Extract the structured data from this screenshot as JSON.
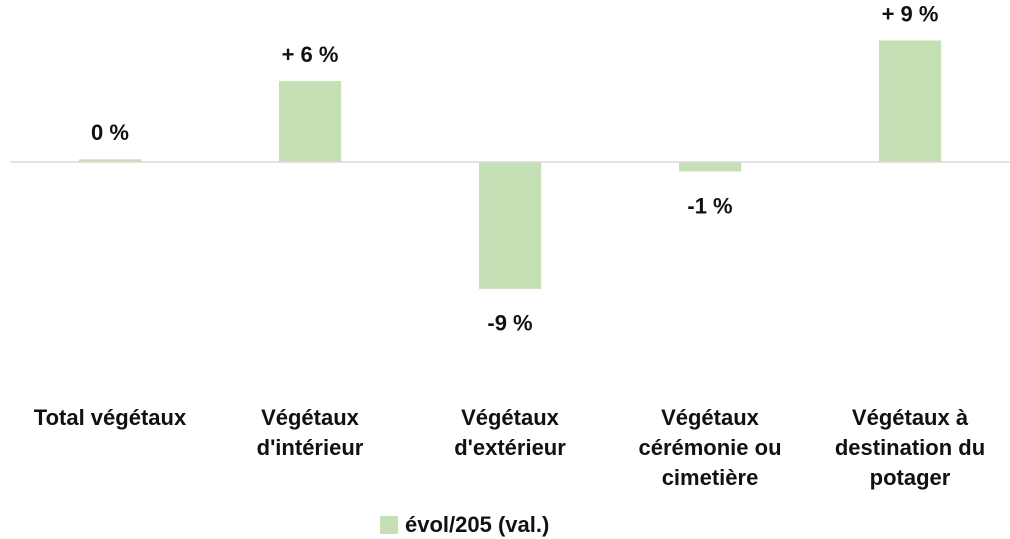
{
  "chart_data": {
    "type": "bar",
    "categories": [
      "Total végétaux",
      "Végétaux d'intérieur",
      "Végétaux d'extérieur",
      "Végétaux cérémonie ou cimetière",
      "Végétaux à destination du potager"
    ],
    "series": [
      {
        "name": "évol/205 (val.)",
        "color": "#c5e0b4",
        "values": [
          0.2,
          6,
          -9.4,
          -0.7,
          9
        ],
        "value_labels": [
          "0 %",
          "+ 6 %",
          "-9 %",
          "-1 %",
          "+ 9 %"
        ]
      }
    ],
    "ylim": [
      -12,
      12
    ],
    "legend": "bottom"
  }
}
